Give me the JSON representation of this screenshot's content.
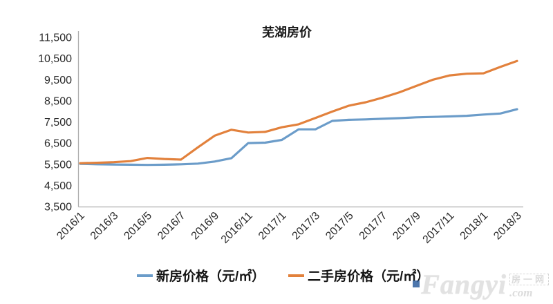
{
  "title": "芜湖房价",
  "watermark": {
    "brand": "Fangyi",
    "cjk": "房一网",
    "suffix": ".com"
  },
  "colors": {
    "new_house": "#6b9cc9",
    "second_hand": "#e2813c",
    "axis": "#adadad",
    "tick_label": "#2b2b2b",
    "title": "#1a1a1a",
    "watermark": "#e2e2e2"
  },
  "chart_data": {
    "type": "line",
    "title": "芜湖房价",
    "x": [
      "2016/1",
      "2016/2",
      "2016/3",
      "2016/4",
      "2016/5",
      "2016/6",
      "2016/7",
      "2016/8",
      "2016/9",
      "2016/10",
      "2016/11",
      "2016/12",
      "2017/1",
      "2017/2",
      "2017/3",
      "2017/4",
      "2017/5",
      "2017/6",
      "2017/7",
      "2017/8",
      "2017/9",
      "2017/10",
      "2017/11",
      "2017/12",
      "2018/1",
      "2018/2",
      "2018/3"
    ],
    "x_tick_labels": [
      "2016/1",
      "2016/3",
      "2016/5",
      "2016/7",
      "2016/9",
      "2016/11",
      "2017/1",
      "2017/3",
      "2017/5",
      "2017/7",
      "2017/9",
      "2017/11",
      "2018/1",
      "2018/3"
    ],
    "series": [
      {
        "name": "新房价格（元/㎡）",
        "key": "new-house-price",
        "color": "#6b9cc9",
        "values": [
          5520,
          5500,
          5490,
          5480,
          5470,
          5480,
          5500,
          5530,
          5630,
          5790,
          6500,
          6520,
          6650,
          7150,
          7150,
          7550,
          7600,
          7620,
          7650,
          7680,
          7720,
          7740,
          7760,
          7790,
          7850,
          7900,
          8100
        ]
      },
      {
        "name": "二手房价格（元/㎡）",
        "key": "second-hand-price",
        "color": "#e2813c",
        "values": [
          5550,
          5570,
          5600,
          5650,
          5800,
          5750,
          5720,
          6300,
          6850,
          7130,
          7000,
          7030,
          7250,
          7390,
          7690,
          7990,
          8270,
          8430,
          8650,
          8900,
          9200,
          9500,
          9700,
          9780,
          9800,
          10100,
          10380
        ]
      }
    ],
    "ylim": [
      3500,
      11500
    ],
    "ytick_step": 1000,
    "ytick_labels": [
      "3,500",
      "4,500",
      "5,500",
      "6,500",
      "7,500",
      "8,500",
      "9,500",
      "10,500",
      "11,500"
    ],
    "grid": false,
    "legend_position": "bottom"
  }
}
